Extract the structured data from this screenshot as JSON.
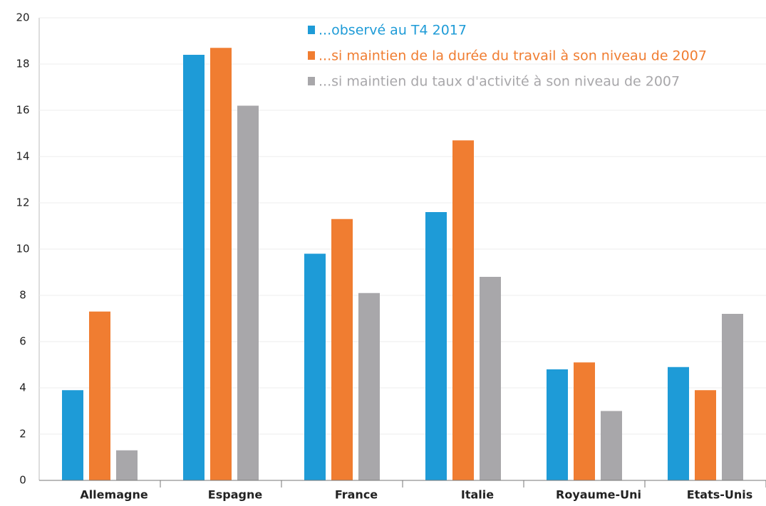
{
  "chart_data": {
    "type": "bar",
    "categories": [
      "Allemagne",
      "Espagne",
      "France",
      "Italie",
      "Royaume-Uni",
      "Etats-Unis"
    ],
    "series": [
      {
        "name": "...observé au T4 2017",
        "color": "#1e9bd7",
        "values": [
          3.9,
          18.4,
          9.8,
          11.6,
          4.8,
          4.9
        ]
      },
      {
        "name": "...si maintien de la durée du travail à son niveau de 2007",
        "color": "#f07d31",
        "values": [
          7.3,
          18.7,
          11.3,
          14.7,
          5.1,
          3.9
        ]
      },
      {
        "name": "...si maintien du taux d'activité à son niveau de 2007",
        "color": "#a8a7aa",
        "values": [
          1.3,
          16.2,
          8.1,
          8.8,
          3.0,
          7.2
        ]
      }
    ],
    "ylim": [
      0,
      20
    ],
    "yticks": [
      0,
      2,
      4,
      6,
      8,
      10,
      12,
      14,
      16,
      18,
      20
    ],
    "grid": true
  }
}
